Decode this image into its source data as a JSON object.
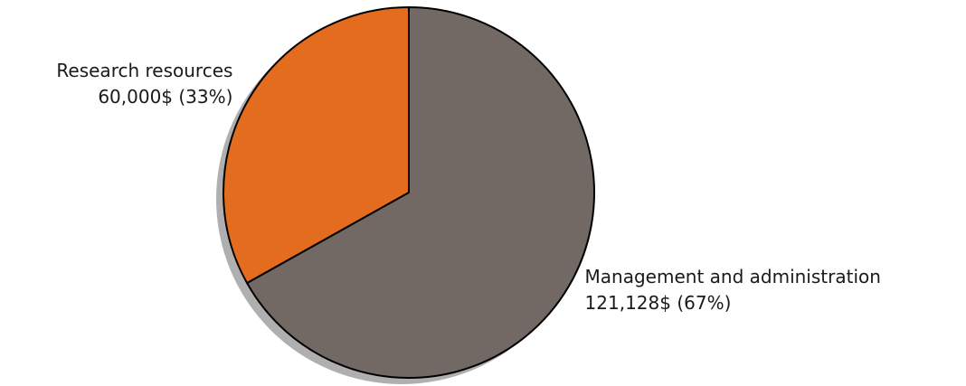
{
  "chart_data": {
    "type": "pie",
    "categories": [
      "Research resources",
      "Management and administration"
    ],
    "values": [
      60000,
      121128
    ],
    "value_labels": [
      "60,000$ (33%)",
      "121,128$ (67%)"
    ],
    "colors": [
      "#e36c1e",
      "#726864"
    ],
    "start_angle": 90,
    "shadow": true
  }
}
